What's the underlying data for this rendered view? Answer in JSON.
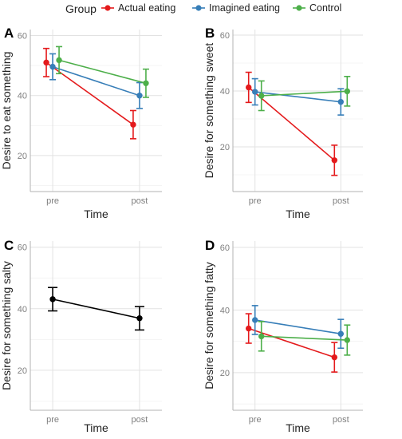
{
  "legend": {
    "title": "Group",
    "entries": [
      {
        "name": "Actual eating",
        "color": "#e41a1c"
      },
      {
        "name": "Imagined eating",
        "color": "#377eb8"
      },
      {
        "name": "Control",
        "color": "#4daf4a"
      }
    ]
  },
  "chart_data": [
    {
      "panel": "A",
      "type": "line",
      "xlabel": "Time",
      "ylabel": "Desire to eat something",
      "categories": [
        "pre",
        "post"
      ],
      "ylim": [
        8,
        62
      ],
      "yticks": [
        20,
        40,
        60
      ],
      "grid": true,
      "series": [
        {
          "name": "Actual eating",
          "color": "#e41a1c",
          "values": [
            51,
            30.3
          ],
          "err_low": [
            46.3,
            25.6
          ],
          "err_high": [
            55.7,
            35
          ]
        },
        {
          "name": "Imagined eating",
          "color": "#377eb8",
          "values": [
            49.6,
            40
          ],
          "err_low": [
            45.3,
            35.7
          ],
          "err_high": [
            53.9,
            44.3
          ]
        },
        {
          "name": "Control",
          "color": "#4daf4a",
          "values": [
            51.8,
            44.1
          ],
          "err_low": [
            47.3,
            39.4
          ],
          "err_high": [
            56.3,
            48.8
          ]
        }
      ]
    },
    {
      "panel": "B",
      "type": "line",
      "xlabel": "Time",
      "ylabel": "Desire for something sweet",
      "categories": [
        "pre",
        "post"
      ],
      "ylim": [
        4,
        62
      ],
      "yticks": [
        20,
        40,
        60
      ],
      "grid": true,
      "series": [
        {
          "name": "Actual eating",
          "color": "#e41a1c",
          "values": [
            41.3,
            15.2
          ],
          "err_low": [
            35.9,
            9.8
          ],
          "err_high": [
            46.7,
            20.6
          ]
        },
        {
          "name": "Imagined eating",
          "color": "#377eb8",
          "values": [
            39.7,
            36.1
          ],
          "err_low": [
            35,
            31.4
          ],
          "err_high": [
            44.4,
            40.8
          ]
        },
        {
          "name": "Control",
          "color": "#4daf4a",
          "values": [
            38.3,
            39.9
          ],
          "err_low": [
            33,
            34.6
          ],
          "err_high": [
            43.6,
            45.2
          ]
        }
      ]
    },
    {
      "panel": "C",
      "type": "line",
      "xlabel": "Time",
      "ylabel": "Desire for something salty",
      "categories": [
        "pre",
        "post"
      ],
      "ylim": [
        7,
        62
      ],
      "yticks": [
        20,
        40,
        60
      ],
      "grid": true,
      "series": [
        {
          "name": "",
          "color": "#000000",
          "values": [
            43.1,
            36.9
          ],
          "err_low": [
            39.3,
            33.1
          ],
          "err_high": [
            46.9,
            40.7
          ]
        }
      ]
    },
    {
      "panel": "D",
      "type": "line",
      "xlabel": "Time",
      "ylabel": "Desire for something fatty",
      "categories": [
        "pre",
        "post"
      ],
      "ylim": [
        8,
        62
      ],
      "yticks": [
        20,
        40,
        60
      ],
      "grid": true,
      "series": [
        {
          "name": "Actual eating",
          "color": "#e41a1c",
          "values": [
            34.1,
            24.9
          ],
          "err_low": [
            29.4,
            20.2
          ],
          "err_high": [
            38.8,
            29.6
          ]
        },
        {
          "name": "Imagined eating",
          "color": "#377eb8",
          "values": [
            36.8,
            32.4
          ],
          "err_low": [
            32.2,
            27.8
          ],
          "err_high": [
            41.4,
            37
          ]
        },
        {
          "name": "Control",
          "color": "#4daf4a",
          "values": [
            31.6,
            30.4
          ],
          "err_low": [
            26.9,
            25.6
          ],
          "err_high": [
            36.3,
            35.2
          ]
        }
      ]
    }
  ]
}
